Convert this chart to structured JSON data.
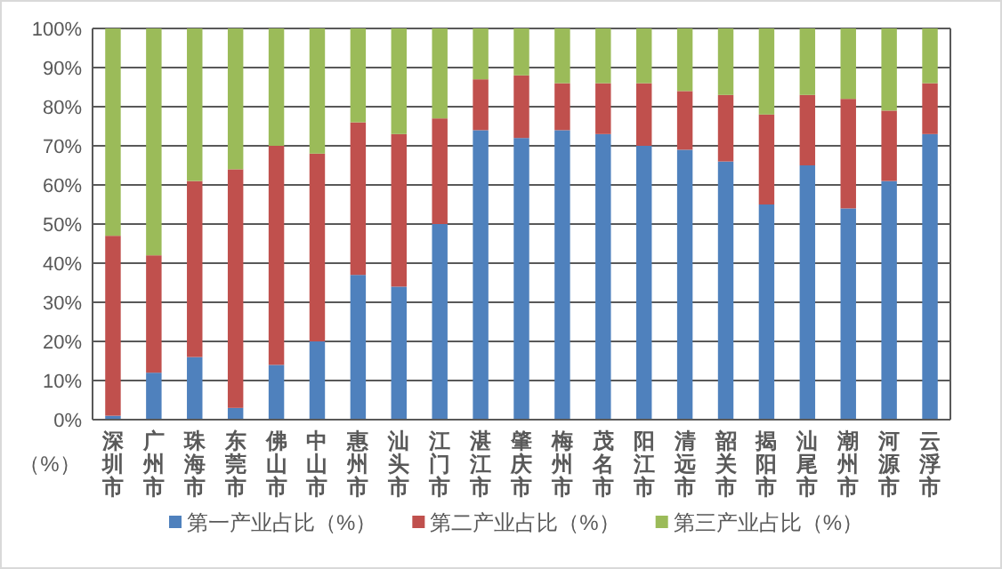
{
  "chart_data": {
    "type": "bar",
    "stacked": true,
    "ylabel": "（%）",
    "categories": [
      "深圳市",
      "广州市",
      "珠海市",
      "东莞市",
      "佛山市",
      "中山市",
      "惠州市",
      "汕头市",
      "江门市",
      "湛江市",
      "肇庆市",
      "梅州市",
      "茂名市",
      "阳江市",
      "清远市",
      "韶关市",
      "揭阳市",
      "汕尾市",
      "潮州市",
      "河源市",
      "云浮市"
    ],
    "series": [
      {
        "name": "第一产业占比（%）",
        "color": "#4f81bd",
        "values": [
          1,
          12,
          16,
          3,
          14,
          20,
          37,
          34,
          50,
          74,
          72,
          74,
          73,
          70,
          69,
          66,
          55,
          65,
          54,
          61,
          73
        ]
      },
      {
        "name": "第二产业占比（%）",
        "color": "#c0504d",
        "values": [
          46,
          30,
          45,
          61,
          56,
          48,
          39,
          39,
          27,
          13,
          16,
          12,
          13,
          16,
          15,
          17,
          23,
          18,
          28,
          18,
          13
        ]
      },
      {
        "name": "第三产业占比（%）",
        "color": "#9bbb59",
        "values": [
          53,
          58,
          39,
          36,
          30,
          32,
          24,
          27,
          23,
          13,
          12,
          14,
          14,
          14,
          16,
          17,
          22,
          17,
          18,
          21,
          14
        ]
      }
    ],
    "ylim": [
      0,
      100
    ],
    "yticks": [
      {
        "value": 0,
        "label": "0%"
      },
      {
        "value": 10,
        "label": "10%"
      },
      {
        "value": 20,
        "label": "20%"
      },
      {
        "value": 30,
        "label": "30%"
      },
      {
        "value": 40,
        "label": "40%"
      },
      {
        "value": 50,
        "label": "50%"
      },
      {
        "value": 60,
        "label": "60%"
      },
      {
        "value": 70,
        "label": "70%"
      },
      {
        "value": 80,
        "label": "80%"
      },
      {
        "value": 90,
        "label": "90%"
      },
      {
        "value": 100,
        "label": "100%"
      }
    ],
    "grid": "y",
    "legend": "bottom"
  }
}
